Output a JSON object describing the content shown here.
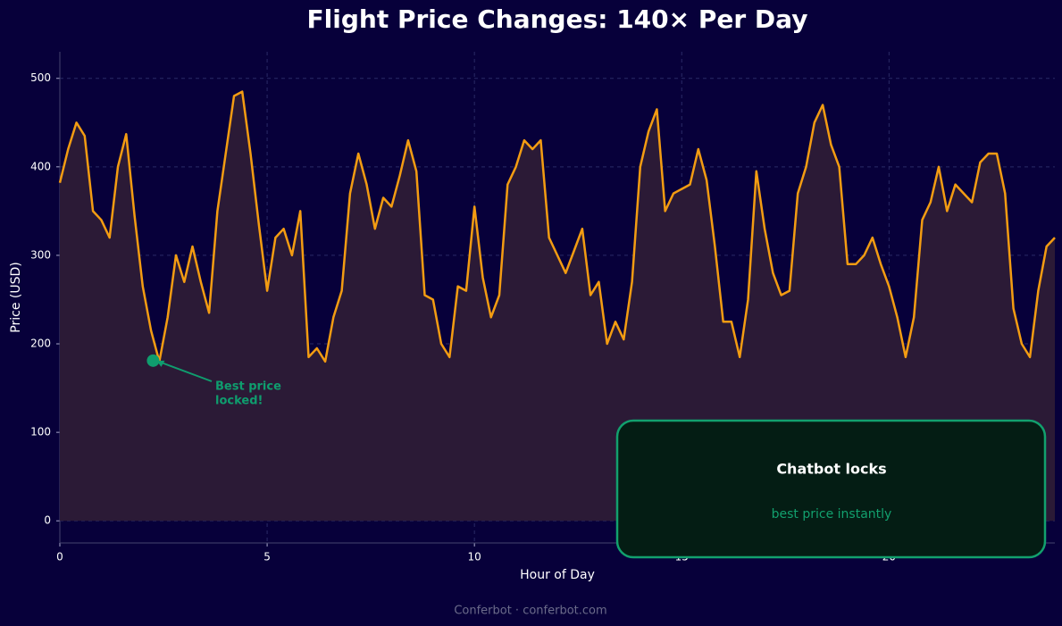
{
  "chart_data": {
    "type": "line",
    "title": "Flight Price Changes: 140× Per Day",
    "x_label": "Hour of Day",
    "y_label": "Price (USD)",
    "x": [
      0,
      0.2,
      0.4,
      0.6,
      0.8,
      1,
      1.2,
      1.4,
      1.6,
      1.8,
      2,
      2.2,
      2.4,
      2.6,
      2.8,
      3,
      3.2,
      3.4,
      3.6,
      3.8,
      4,
      4.2,
      4.4,
      4.6,
      4.8,
      5,
      5.2,
      5.4,
      5.6,
      5.8,
      6,
      6.2,
      6.4,
      6.6,
      6.8,
      7,
      7.2,
      7.4,
      7.6,
      7.8,
      8,
      8.2,
      8.4,
      8.6,
      8.8,
      9,
      9.2,
      9.4,
      9.6,
      9.8,
      10,
      10.2,
      10.4,
      10.6,
      10.8,
      11,
      11.2,
      11.4,
      11.6,
      11.8,
      12,
      12.2,
      12.4,
      12.6,
      12.8,
      13,
      13.2,
      13.4,
      13.6,
      13.8,
      14,
      14.2,
      14.4,
      14.6,
      14.8,
      15,
      15.2,
      15.4,
      15.6,
      15.8,
      16,
      16.2,
      16.4,
      16.6,
      16.8,
      17,
      17.2,
      17.4,
      17.6,
      17.8,
      18,
      18.2,
      18.4,
      18.6,
      18.8,
      19,
      19.2,
      19.4,
      19.6,
      19.8,
      20,
      20.2,
      20.4,
      20.6,
      20.8,
      21,
      21.2,
      21.4,
      21.6,
      21.8,
      22,
      22.2,
      22.4,
      22.6,
      22.8,
      23,
      23.2,
      23.4,
      23.6,
      23.8,
      24
    ],
    "values": [
      382,
      420,
      450,
      435,
      350,
      340,
      320,
      400,
      437,
      345,
      265,
      215,
      180,
      230,
      300,
      270,
      310,
      270,
      235,
      350,
      415,
      480,
      485,
      415,
      335,
      260,
      320,
      330,
      300,
      350,
      185,
      195,
      180,
      230,
      260,
      370,
      415,
      380,
      330,
      365,
      355,
      390,
      430,
      395,
      255,
      250,
      200,
      185,
      265,
      260,
      355,
      275,
      230,
      255,
      380,
      400,
      430,
      420,
      430,
      320,
      300,
      280,
      305,
      330,
      255,
      270,
      200,
      225,
      205,
      270,
      400,
      440,
      465,
      350,
      370,
      375,
      380,
      420,
      385,
      310,
      225,
      225,
      185,
      250,
      395,
      330,
      280,
      255,
      260,
      370,
      400,
      450,
      470,
      425,
      400,
      290,
      290,
      300,
      320,
      290,
      265,
      230,
      185,
      230,
      340,
      360,
      400,
      350,
      380,
      370,
      360,
      405,
      415,
      415,
      370,
      240,
      200,
      185,
      260,
      310,
      320
    ],
    "color": "#f39c12",
    "xlim": [
      0,
      24
    ],
    "xticks": [
      0,
      5,
      10,
      15,
      20
    ],
    "ylim": [
      -25,
      530
    ],
    "yticks": [
      0,
      100,
      200,
      300,
      400,
      500
    ],
    "grid": true,
    "annotation": {
      "x": 2.25,
      "y": 181,
      "lines": [
        "Best price",
        "locked!"
      ]
    },
    "callout": {
      "title": "Chatbot locks",
      "subtitle": "best price instantly"
    },
    "footer": "Conferbot · conferbot.com"
  }
}
